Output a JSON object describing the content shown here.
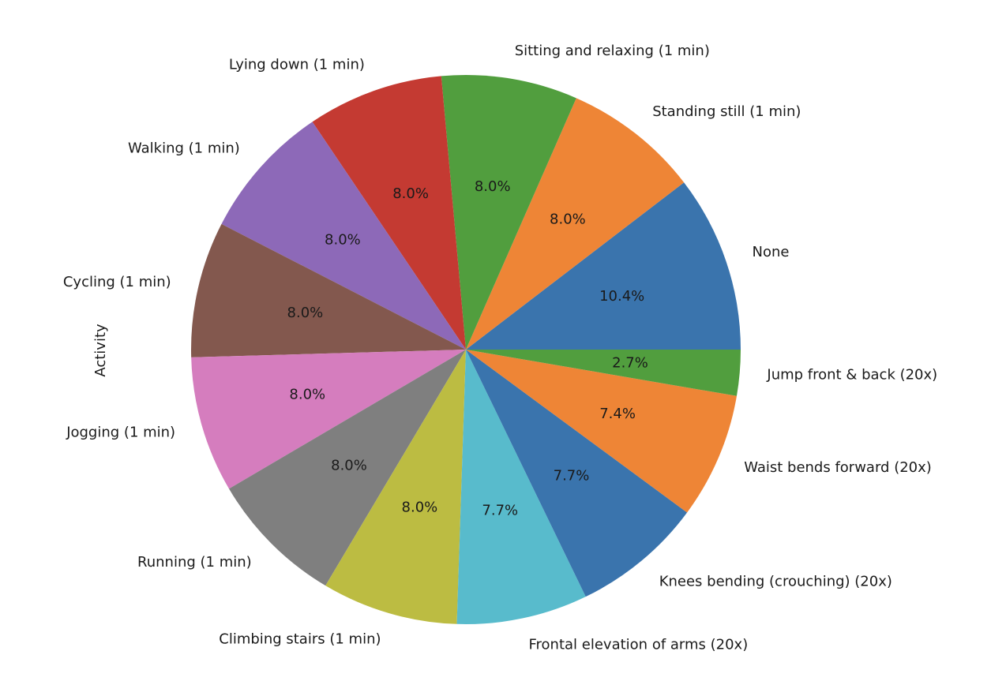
{
  "chart_data": {
    "type": "pie",
    "ylabel": "Activity",
    "start_angle_deg": 0,
    "direction": "counterclockwise",
    "autopct_format": "%.1f%%",
    "slices": [
      {
        "label": "None",
        "value": 10.4,
        "pct_text": "10.4%",
        "color": "#3a74ad"
      },
      {
        "label": "Standing still (1 min)",
        "value": 8.0,
        "pct_text": "8.0%",
        "color": "#ee8536"
      },
      {
        "label": "Sitting and relaxing (1 min)",
        "value": 8.0,
        "pct_text": "8.0%",
        "color": "#519e3e"
      },
      {
        "label": "Lying down (1 min)",
        "value": 8.0,
        "pct_text": "8.0%",
        "color": "#c43a32"
      },
      {
        "label": "Walking (1 min)",
        "value": 8.0,
        "pct_text": "8.0%",
        "color": "#8d69b8"
      },
      {
        "label": "Cycling (1 min)",
        "value": 8.0,
        "pct_text": "8.0%",
        "color": "#83584e"
      },
      {
        "label": "Jogging (1 min)",
        "value": 8.0,
        "pct_text": "8.0%",
        "color": "#d57dbe"
      },
      {
        "label": "Running (1 min)",
        "value": 8.0,
        "pct_text": "8.0%",
        "color": "#7f7f7f"
      },
      {
        "label": "Climbing stairs (1 min)",
        "value": 8.0,
        "pct_text": "8.0%",
        "color": "#bcbc42"
      },
      {
        "label": "Frontal elevation of arms (20x)",
        "value": 7.7,
        "pct_text": "7.7%",
        "color": "#58bbcc"
      },
      {
        "label": "Knees bending (crouching) (20x)",
        "value": 7.7,
        "pct_text": "7.7%",
        "color": "#3a74ad"
      },
      {
        "label": "Waist bends forward (20x)",
        "value": 7.4,
        "pct_text": "7.4%",
        "color": "#ee8536"
      },
      {
        "label": "Jump front & back (20x)",
        "value": 2.7,
        "pct_text": "2.7%",
        "color": "#519e3e"
      }
    ]
  }
}
